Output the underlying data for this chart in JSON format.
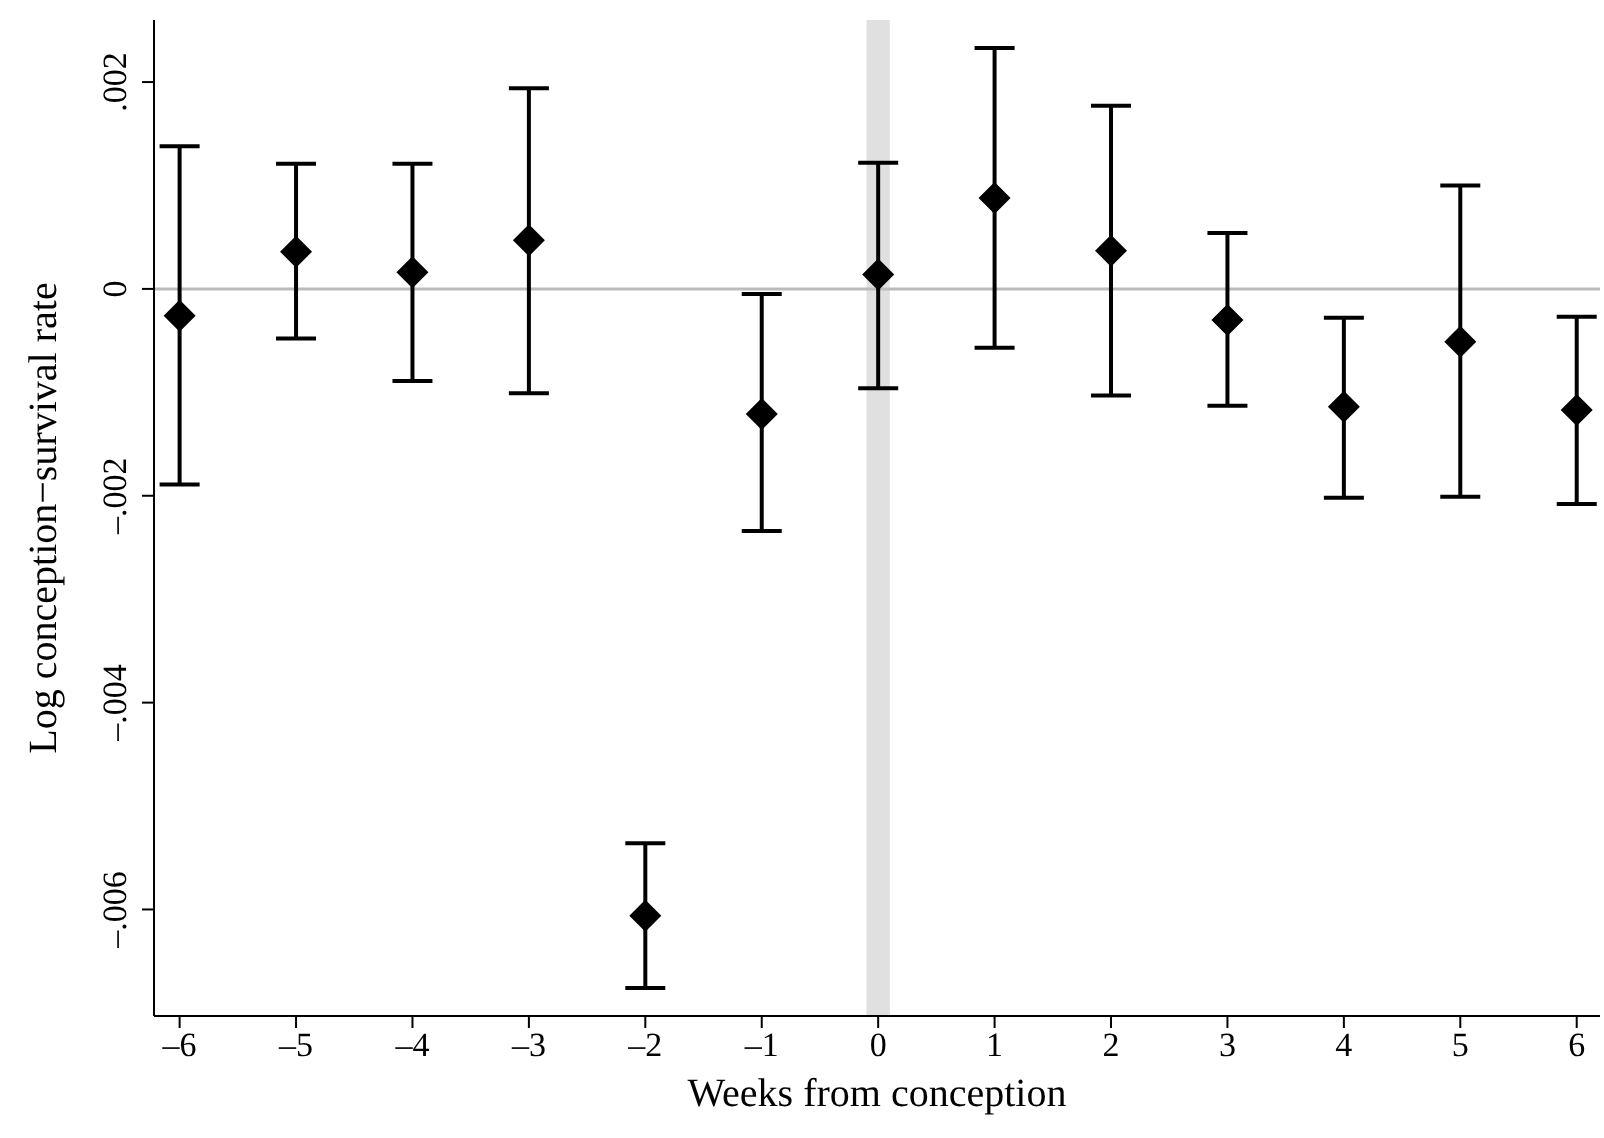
{
  "chart_data": {
    "type": "scatter",
    "xlabel": "Weeks from conception",
    "ylabel": "Log conception−survival rate",
    "x": [
      -6,
      -5,
      -4,
      -3,
      -2,
      -1,
      0,
      1,
      2,
      3,
      4,
      5,
      6
    ],
    "series": [
      {
        "color": "#000000",
        "values": [
          -0.00026,
          0.00036,
          0.00016,
          0.00047,
          -0.00606,
          -0.00121,
          0.00014,
          0.00088,
          0.00037,
          -0.0003,
          -0.00114,
          -0.00051,
          -0.00117
        ],
        "errors": [
          [
            -0.00189,
            0.00138
          ],
          [
            -0.00048,
            0.00121
          ],
          [
            -0.00089,
            0.00121
          ],
          [
            -0.00101,
            0.00194
          ],
          [
            -0.00676,
            -0.00536
          ],
          [
            -0.00234,
            -5e-05
          ],
          [
            -0.00096,
            0.00122
          ],
          [
            -0.00057,
            0.00233
          ],
          [
            -0.00103,
            0.00177
          ],
          [
            -0.00113,
            0.00054
          ],
          [
            -0.00202,
            -0.00028
          ],
          [
            -0.00201,
            0.001
          ],
          [
            -0.00208,
            -0.00027
          ]
        ]
      }
    ],
    "marker": "diamond",
    "grid": false,
    "legend": false,
    "xlim": [
      -6.22,
      6.2
    ],
    "xticks": [
      {
        "value": -6,
        "label": "–6"
      },
      {
        "value": -5,
        "label": "–5"
      },
      {
        "value": -4,
        "label": "–4"
      },
      {
        "value": -3,
        "label": "–3"
      },
      {
        "value": -2,
        "label": "–2"
      },
      {
        "value": -1,
        "label": "–1"
      },
      0,
      1,
      2,
      3,
      4,
      5,
      6
    ],
    "ylim": [
      -0.00703,
      0.0026
    ],
    "yticks": [
      {
        "value": -0.006,
        "label": "–.006"
      },
      {
        "value": -0.004,
        "label": "–.004"
      },
      {
        "value": -0.002,
        "label": "–.002"
      },
      0,
      {
        "value": 0.002,
        "label": ".002"
      }
    ],
    "ref_lines": [
      {
        "axis": "y",
        "value": 0,
        "color": "#bbbbbb"
      }
    ],
    "bands": [
      {
        "axis": "x",
        "from": -0.1,
        "to": 0.1,
        "color": "#e0e0e0"
      }
    ]
  }
}
